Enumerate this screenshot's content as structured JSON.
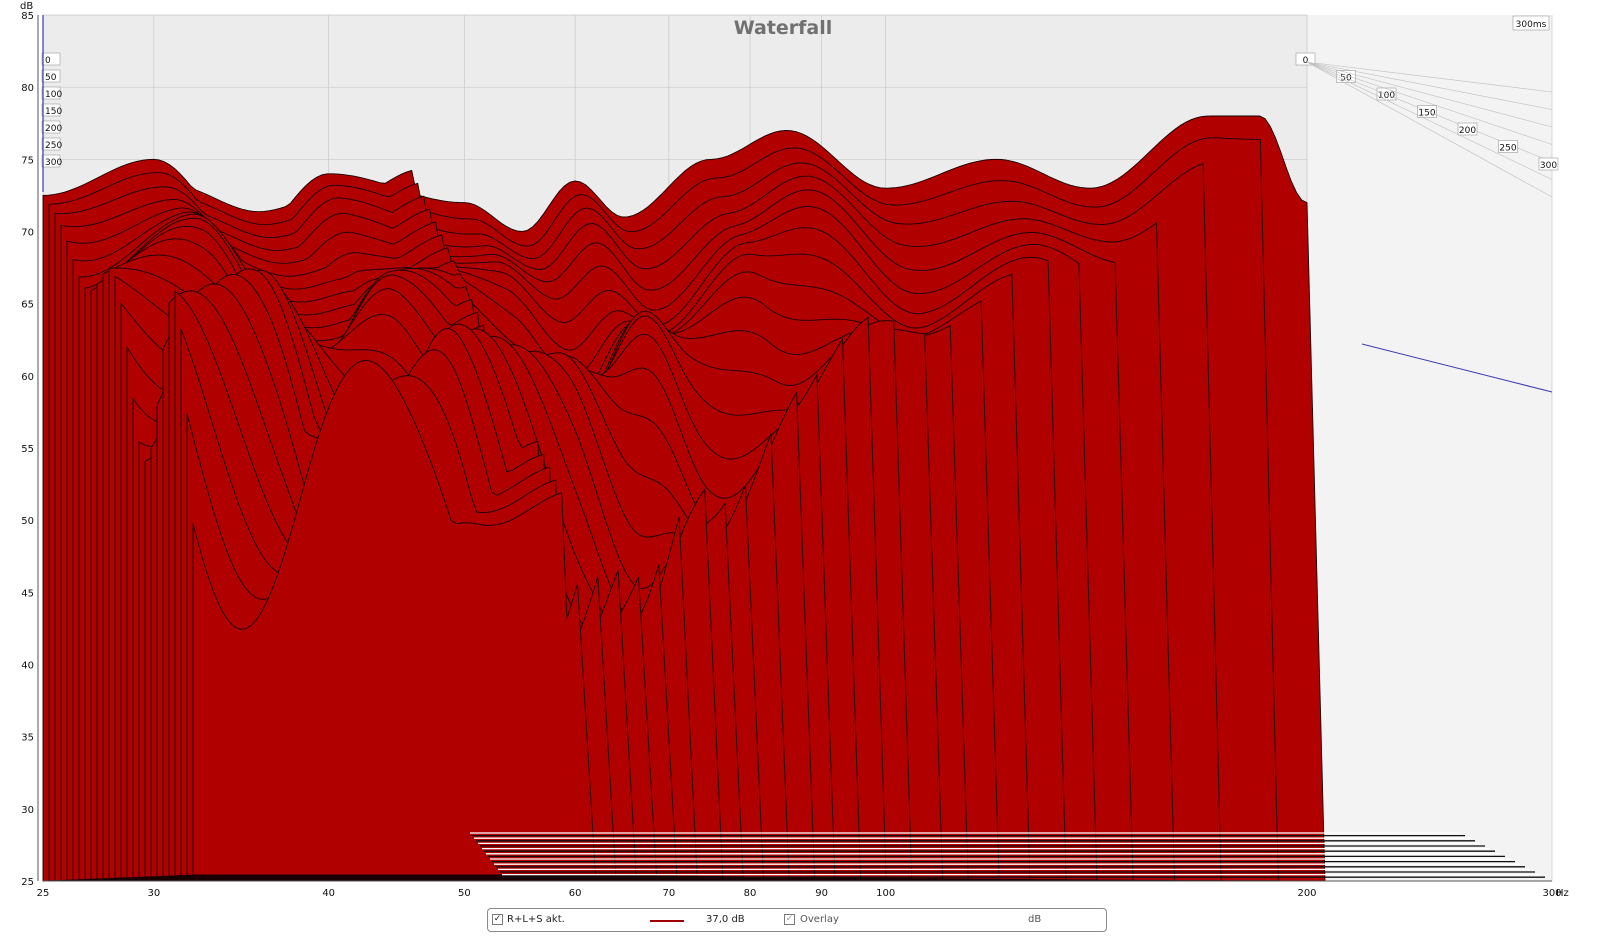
{
  "chart_data": {
    "type": "area",
    "title": "Waterfall",
    "y_unit_label": "dB",
    "x_unit_label": "Hz",
    "time_corner_label": "300ms",
    "xlim": [
      25,
      300
    ],
    "x_scale": "log",
    "ylim": [
      25,
      85
    ],
    "x_ticks": [
      25,
      30,
      40,
      50,
      60,
      70,
      80,
      90,
      100,
      200,
      300
    ],
    "x_tick_labels": [
      "25",
      "30",
      "40",
      "50",
      "60",
      "70",
      "80",
      "90",
      "100",
      "200",
      "300"
    ],
    "y_ticks": [
      25,
      30,
      35,
      40,
      45,
      50,
      55,
      60,
      65,
      70,
      75,
      80,
      85
    ],
    "time_axis_labels": [
      "0",
      "50",
      "100",
      "150",
      "200",
      "250",
      "300"
    ],
    "time_unit": "ms",
    "fill_color": "#b00000",
    "outline_color": "#1a0000",
    "peaks": [
      [
        25,
        72.5
      ],
      [
        30,
        75
      ],
      [
        35,
        69.5
      ],
      [
        40,
        74
      ],
      [
        50,
        72
      ],
      [
        55,
        70
      ],
      [
        60,
        73.5
      ],
      [
        65,
        71
      ],
      [
        75,
        75
      ],
      [
        85,
        77
      ],
      [
        100,
        73
      ],
      [
        120,
        75
      ],
      [
        140,
        73
      ],
      [
        170,
        78
      ],
      [
        185,
        78
      ],
      [
        200,
        72
      ]
    ],
    "series": [
      {
        "name": "R+L+S akt.",
        "color": "#b00000"
      }
    ],
    "slices": [
      {
        "time_ms": 0,
        "start_db": 72.5,
        "cutoff_hz": 300
      },
      {
        "time_ms": 300,
        "start_db": 48,
        "cutoff_hz": 45
      }
    ]
  },
  "legend": {
    "series_label": "R+L+S akt.",
    "series_checked": true,
    "level_value": "37,0 dB",
    "overlay_label": "Overlay",
    "overlay_checked": true,
    "unit": "dB",
    "line_color": "#a00000"
  }
}
